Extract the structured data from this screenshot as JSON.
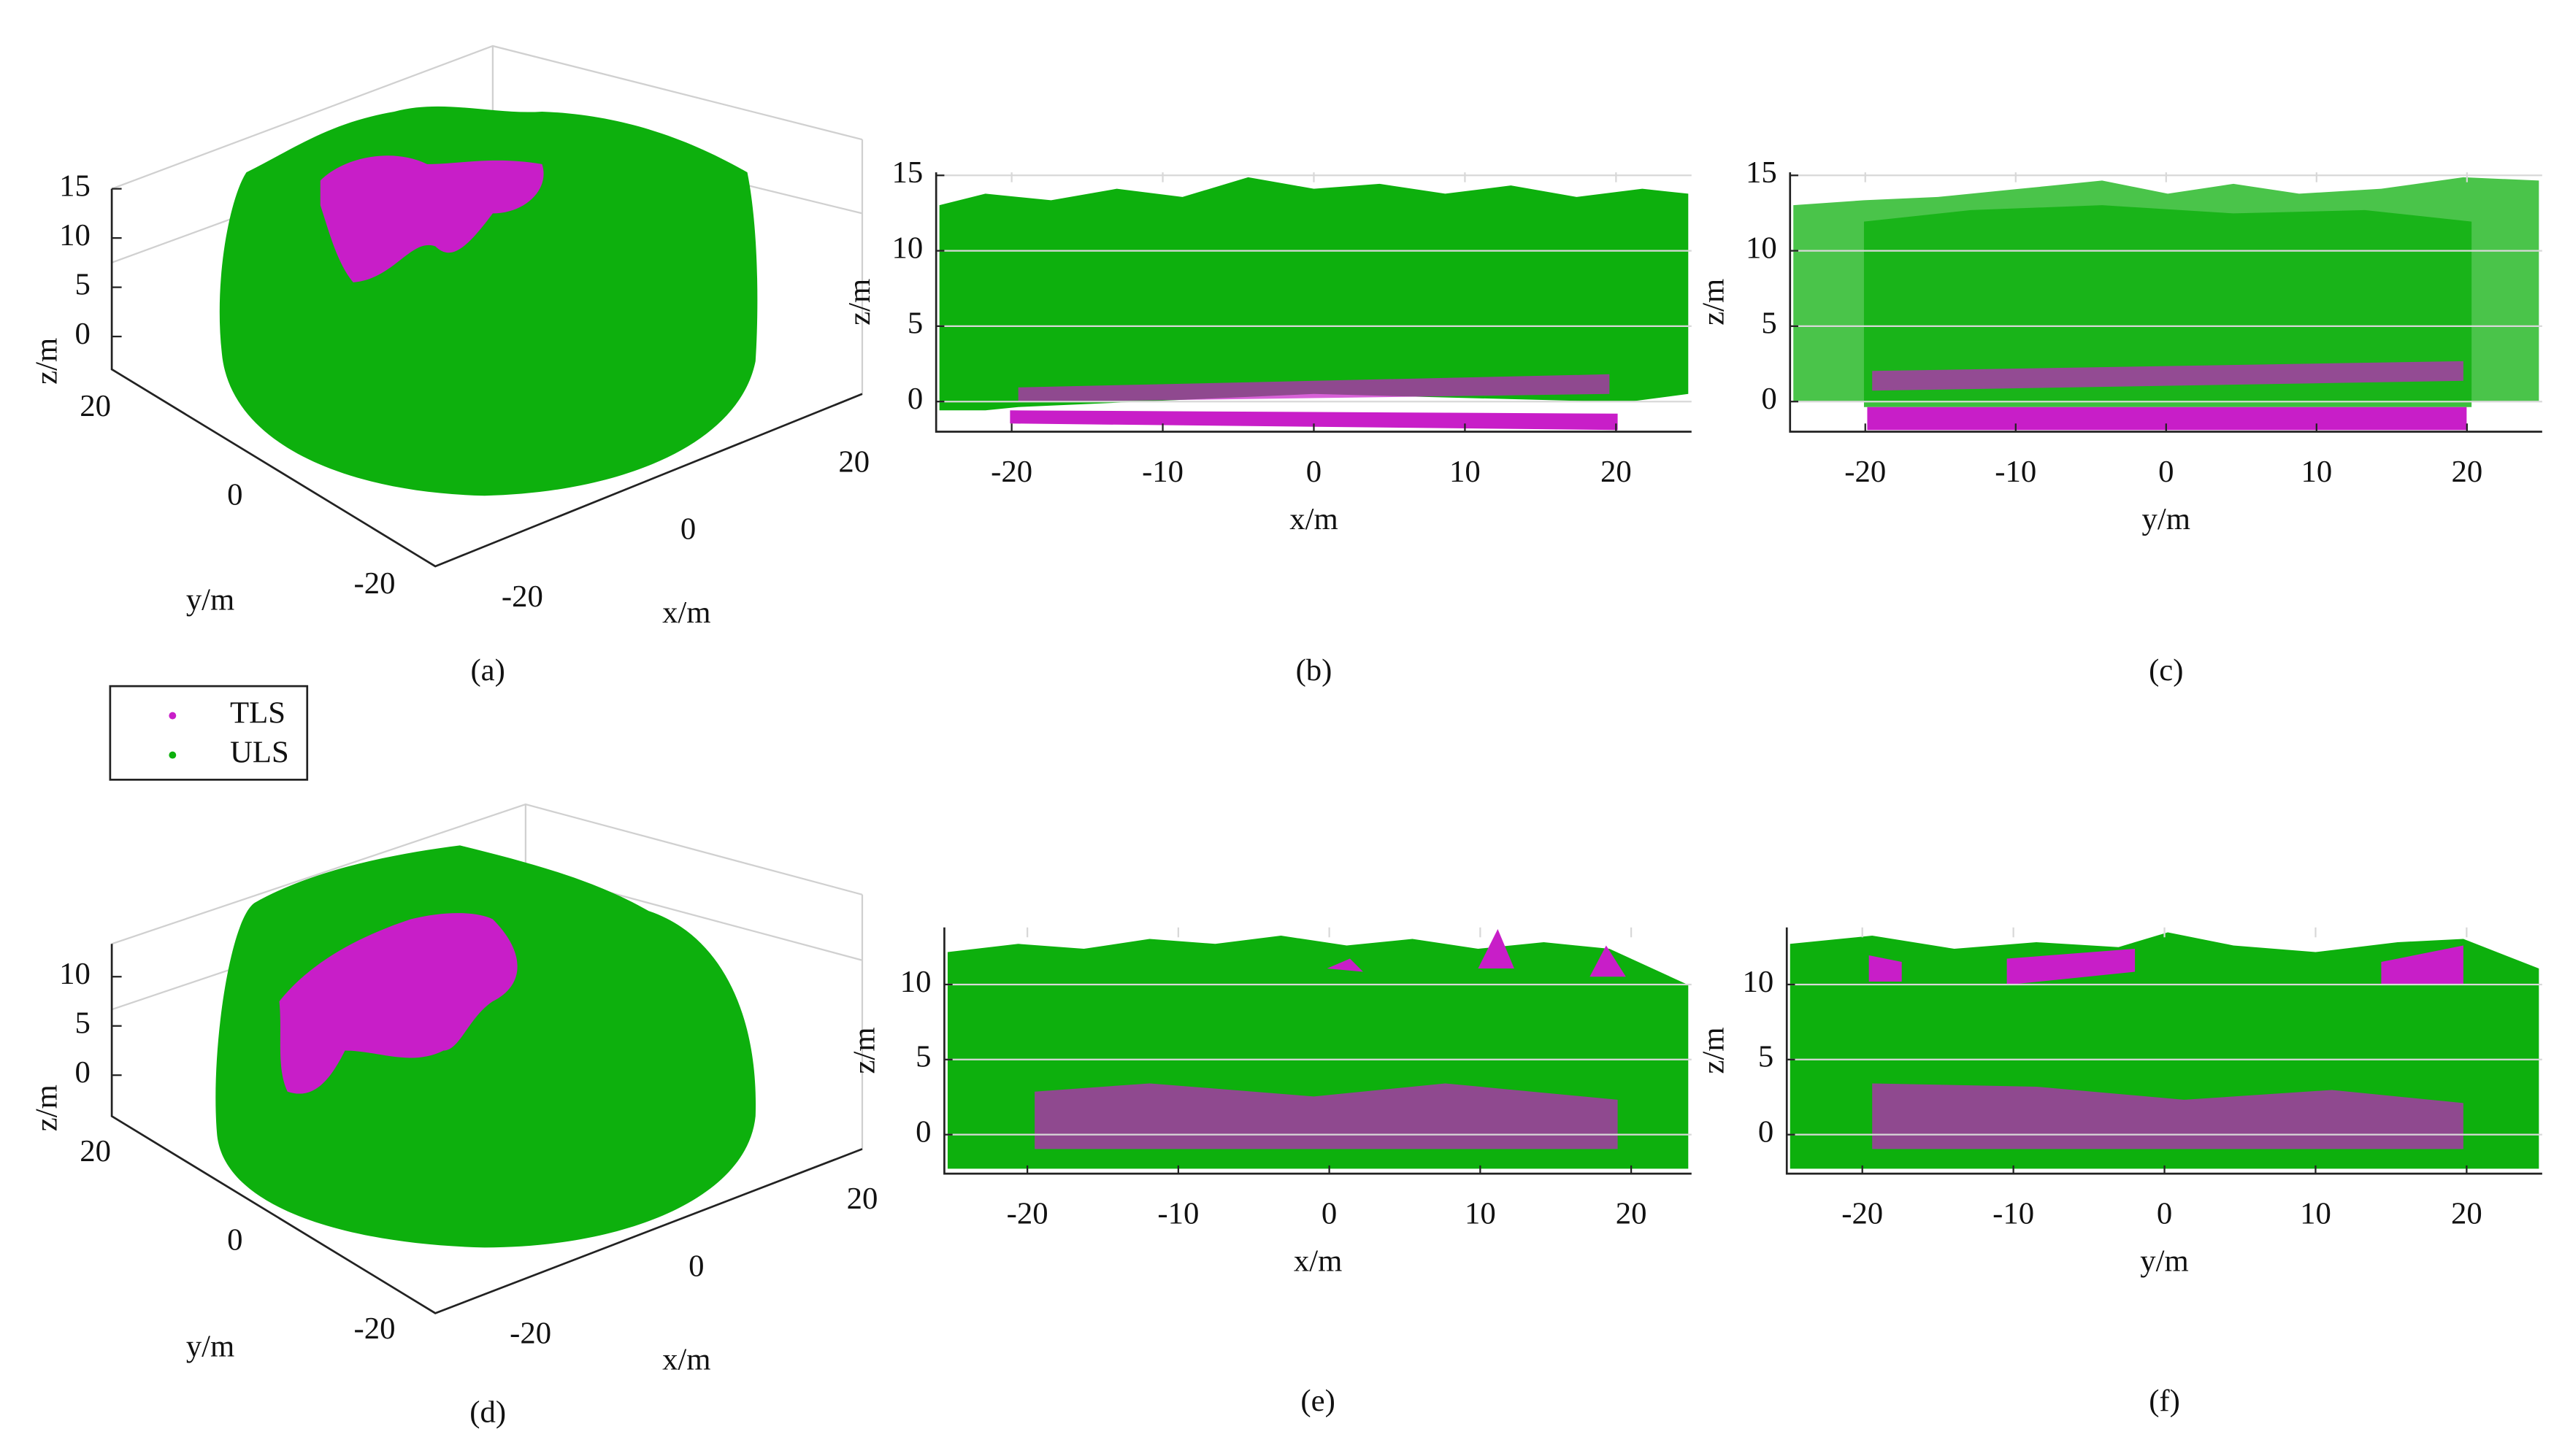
{
  "legend": {
    "series": [
      {
        "name": "TLS",
        "color": "#c81ec8"
      },
      {
        "name": "ULS",
        "color": "#0db00d"
      }
    ]
  },
  "chart_data": [
    {
      "type": "scatter3d",
      "caption": "(a)",
      "xlabel": "x/m",
      "ylabel": "y/m",
      "zlabel": "z/m",
      "xticks": [
        -20,
        0,
        20
      ],
      "yticks": [
        -20,
        0,
        20
      ],
      "zticks": [
        0,
        5,
        10,
        15
      ]
    },
    {
      "type": "scatter",
      "caption": "(b)",
      "xlabel": "x/m",
      "ylabel": "z/m",
      "xlim": [
        -25,
        25
      ],
      "ylim": [
        -2,
        15.2
      ],
      "xticks": [
        -20,
        -10,
        0,
        10,
        20
      ],
      "yticks": [
        0,
        5,
        10,
        15
      ],
      "grid": true
    },
    {
      "type": "scatter",
      "caption": "(c)",
      "xlabel": "y/m",
      "ylabel": "z/m",
      "xlim": [
        -25,
        25
      ],
      "ylim": [
        -2,
        15.2
      ],
      "xticks": [
        -20,
        -10,
        0,
        10,
        20
      ],
      "yticks": [
        0,
        5,
        10,
        15
      ],
      "grid": true
    },
    {
      "type": "scatter3d",
      "caption": "(d)",
      "xlabel": "x/m",
      "ylabel": "y/m",
      "zlabel": "z/m",
      "xticks": [
        -20,
        0,
        20
      ],
      "yticks": [
        -20,
        0,
        20
      ],
      "zticks": [
        0,
        5,
        10
      ]
    },
    {
      "type": "scatter",
      "caption": "(e)",
      "xlabel": "x/m",
      "ylabel": "z/m",
      "xlim": [
        -25.5,
        24
      ],
      "ylim": [
        -2.6,
        13.8
      ],
      "xticks": [
        -20,
        -10,
        0,
        10,
        20
      ],
      "yticks": [
        0,
        5,
        10
      ],
      "grid": true
    },
    {
      "type": "scatter",
      "caption": "(f)",
      "xlabel": "y/m",
      "ylabel": "z/m",
      "xlim": [
        -25,
        25
      ],
      "ylim": [
        -2.6,
        13.8
      ],
      "xticks": [
        -20,
        -10,
        0,
        10,
        20
      ],
      "yticks": [
        0,
        5,
        10
      ],
      "grid": true
    }
  ]
}
